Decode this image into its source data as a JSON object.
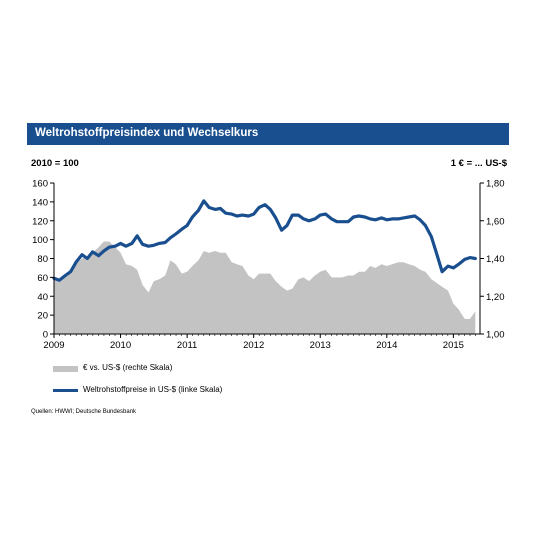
{
  "header": {
    "title": "Weltrohstoffpreisindex und Wechselkurs",
    "left_unit": "2010 = 100",
    "right_unit": "1 € = ... US-$"
  },
  "legend": {
    "area_label": "€ vs. US-$ (rechte Skala)",
    "line_label": "Weltrohstoffpreise in US-$ (linke Skala)"
  },
  "source": "Quellen: HWWI; Deutsche Bundesbank",
  "colors": {
    "title_bg": "#1a4f8f",
    "line": "#1a4f8f",
    "area": "#c3c3c3"
  },
  "chart_data": {
    "type": "line",
    "x_axis": {
      "min": 2009,
      "max": 2015.4,
      "ticks": [
        2009,
        2010,
        2011,
        2012,
        2013,
        2014,
        2015
      ],
      "tick_labels": [
        "2009",
        "2010",
        "2011",
        "2012",
        "2013",
        "2014",
        "2015"
      ]
    },
    "y_left": {
      "min": 0,
      "max": 160,
      "ticks": [
        0,
        20,
        40,
        60,
        80,
        100,
        120,
        140,
        160
      ],
      "tick_labels": [
        "0",
        "20",
        "40",
        "60",
        "80",
        "100",
        "120",
        "140",
        "160"
      ]
    },
    "y_right": {
      "min": 1.0,
      "max": 1.8,
      "ticks": [
        1.0,
        1.2,
        1.4,
        1.6,
        1.8
      ],
      "tick_labels": [
        "1,00",
        "1,20",
        "1,40",
        "1,60",
        "1,80"
      ]
    },
    "grid": false,
    "legend_position": "bottom",
    "series": [
      {
        "name": "€ vs. US-$ (rechte Skala)",
        "kind": "area",
        "axis": "right",
        "x": [
          2009.0,
          2009.08,
          2009.17,
          2009.25,
          2009.33,
          2009.42,
          2009.5,
          2009.58,
          2009.67,
          2009.75,
          2009.83,
          2009.92,
          2010.0,
          2010.08,
          2010.17,
          2010.25,
          2010.33,
          2010.42,
          2010.5,
          2010.58,
          2010.67,
          2010.75,
          2010.83,
          2010.92,
          2011.0,
          2011.08,
          2011.17,
          2011.25,
          2011.33,
          2011.42,
          2011.5,
          2011.58,
          2011.67,
          2011.75,
          2011.83,
          2011.92,
          2012.0,
          2012.08,
          2012.17,
          2012.25,
          2012.33,
          2012.42,
          2012.5,
          2012.58,
          2012.67,
          2012.75,
          2012.83,
          2012.92,
          2013.0,
          2013.08,
          2013.17,
          2013.25,
          2013.33,
          2013.42,
          2013.5,
          2013.58,
          2013.67,
          2013.75,
          2013.83,
          2013.92,
          2014.0,
          2014.08,
          2014.17,
          2014.25,
          2014.33,
          2014.42,
          2014.5,
          2014.58,
          2014.67,
          2014.75,
          2014.83,
          2014.92,
          2015.0,
          2015.08,
          2015.17,
          2015.25,
          2015.33
        ],
        "values": [
          1.3,
          1.28,
          1.31,
          1.32,
          1.37,
          1.4,
          1.41,
          1.43,
          1.46,
          1.49,
          1.49,
          1.46,
          1.43,
          1.37,
          1.36,
          1.34,
          1.26,
          1.22,
          1.28,
          1.29,
          1.31,
          1.39,
          1.37,
          1.32,
          1.33,
          1.36,
          1.39,
          1.44,
          1.43,
          1.44,
          1.43,
          1.43,
          1.38,
          1.37,
          1.36,
          1.31,
          1.29,
          1.32,
          1.32,
          1.32,
          1.28,
          1.25,
          1.23,
          1.24,
          1.29,
          1.3,
          1.28,
          1.31,
          1.33,
          1.34,
          1.3,
          1.3,
          1.3,
          1.31,
          1.31,
          1.33,
          1.33,
          1.36,
          1.35,
          1.37,
          1.36,
          1.37,
          1.38,
          1.38,
          1.37,
          1.36,
          1.34,
          1.33,
          1.29,
          1.27,
          1.25,
          1.23,
          1.16,
          1.13,
          1.08,
          1.08,
          1.12
        ]
      },
      {
        "name": "Weltrohstoffpreise in US-$ (linke Skala)",
        "kind": "line",
        "axis": "left",
        "x": [
          2009.0,
          2009.08,
          2009.17,
          2009.25,
          2009.33,
          2009.42,
          2009.5,
          2009.58,
          2009.67,
          2009.75,
          2009.83,
          2009.92,
          2010.0,
          2010.08,
          2010.17,
          2010.25,
          2010.33,
          2010.42,
          2010.5,
          2010.58,
          2010.67,
          2010.75,
          2010.83,
          2010.92,
          2011.0,
          2011.08,
          2011.17,
          2011.25,
          2011.33,
          2011.42,
          2011.5,
          2011.58,
          2011.67,
          2011.75,
          2011.83,
          2011.92,
          2012.0,
          2012.08,
          2012.17,
          2012.25,
          2012.33,
          2012.42,
          2012.5,
          2012.58,
          2012.67,
          2012.75,
          2012.83,
          2012.92,
          2013.0,
          2013.08,
          2013.17,
          2013.25,
          2013.33,
          2013.42,
          2013.5,
          2013.58,
          2013.67,
          2013.75,
          2013.83,
          2013.92,
          2014.0,
          2014.08,
          2014.17,
          2014.25,
          2014.33,
          2014.42,
          2014.5,
          2014.58,
          2014.67,
          2014.75,
          2014.83,
          2014.92,
          2015.0,
          2015.08,
          2015.17,
          2015.25,
          2015.33
        ],
        "values": [
          59,
          57,
          62,
          66,
          76,
          84,
          80,
          87,
          83,
          88,
          92,
          93,
          96,
          93,
          96,
          104,
          95,
          93,
          94,
          96,
          97,
          102,
          106,
          111,
          115,
          124,
          131,
          141,
          134,
          132,
          133,
          128,
          127,
          125,
          126,
          125,
          127,
          134,
          137,
          132,
          123,
          110,
          115,
          126,
          126,
          122,
          120,
          122,
          126,
          127,
          122,
          119,
          119,
          119,
          124,
          125,
          124,
          122,
          121,
          123,
          121,
          122,
          122,
          123,
          124,
          125,
          121,
          115,
          103,
          85,
          66,
          72,
          70,
          74,
          79,
          81,
          80
        ]
      }
    ]
  }
}
